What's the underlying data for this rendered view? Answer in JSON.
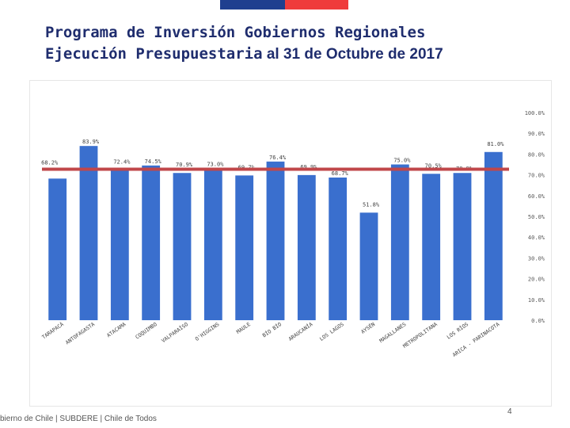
{
  "header": {
    "title_line1": "Programa de Inversión Gobiernos Regionales",
    "title_line2": "Ejecución Presupuestaria",
    "title_suffix": " al 31 de Octubre de 2017"
  },
  "colors": {
    "stripe_blue": "#1f3f8f",
    "stripe_red": "#ef3b3b",
    "bar": "#3a6fce",
    "target_line": "#c0474a"
  },
  "footer": {
    "text": "bierno de Chile | SUBDERE | Chile de Todos",
    "page_number": "4"
  },
  "chart_data": {
    "type": "bar",
    "title": "",
    "categories": [
      "TARAPACÁ",
      "ANTOFAGASTA",
      "ATACAMA",
      "COQUIMBO",
      "VALPARAÍSO",
      "O'HIGGINS",
      "MAULE",
      "BÍO BÍO",
      "ARAUCANÍA",
      "LOS LAGOS",
      "AYSÉN",
      "MAGALLANES",
      "METROPOLITANA",
      "LOS RÍOS",
      "ARICA - PARINACOTA"
    ],
    "values": [
      68.2,
      83.9,
      72.4,
      74.5,
      70.9,
      73.0,
      69.7,
      76.4,
      69.9,
      68.7,
      51.8,
      75.0,
      70.5,
      70.9,
      81.0
    ],
    "value_labels": [
      "68.2%",
      "83.9%",
      "72.4%",
      "74.5%",
      "70.9%",
      "73.0%",
      "69.7%",
      "76.4%",
      "69.9%",
      "68.7%",
      "51.8%",
      "75.0%",
      "70.5%",
      "70.9%",
      "81.0%"
    ],
    "reference_value": 72.7,
    "ylim": [
      0,
      100
    ],
    "yticks": [
      "0.0%",
      "10.0%",
      "20.0%",
      "30.0%",
      "40.0%",
      "50.0%",
      "60.0%",
      "70.0%",
      "80.0%",
      "90.0%",
      "100.0%"
    ],
    "axis_position": "right",
    "xlabel": "",
    "ylabel": ""
  }
}
